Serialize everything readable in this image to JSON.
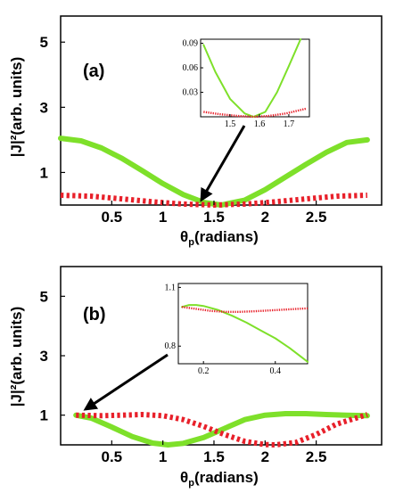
{
  "chart_data": [
    {
      "panel": "(a)",
      "type": "line",
      "xlabel_main": "θ",
      "xlabel_sub": "p",
      "xlabel_rest": "(radians)",
      "ylabel": "|J|²(arb. units)",
      "xlim": [
        0.0,
        3.14
      ],
      "ylim": [
        0,
        5.8
      ],
      "xticks": [
        0.5,
        1,
        1.5,
        2,
        2.5
      ],
      "xtick_labels": [
        "0.5",
        "1",
        "1.5",
        "2",
        "2.5"
      ],
      "yticks": [
        1,
        3,
        5
      ],
      "ytick_labels": [
        "1",
        "3",
        "5"
      ],
      "series": [
        {
          "style": "solid",
          "color": "#7ee02a",
          "x": [
            0.0,
            0.2,
            0.4,
            0.6,
            0.8,
            1.0,
            1.2,
            1.4,
            1.57,
            1.8,
            2.0,
            2.2,
            2.4,
            2.6,
            2.8,
            3.0
          ],
          "y": [
            2.05,
            1.97,
            1.75,
            1.43,
            1.05,
            0.66,
            0.32,
            0.08,
            0.0,
            0.15,
            0.47,
            0.86,
            1.25,
            1.62,
            1.92,
            2.0
          ]
        },
        {
          "style": "dotted",
          "color": "#e8202a",
          "x": [
            0.0,
            0.3,
            0.6,
            0.9,
            1.2,
            1.5,
            1.8,
            2.1,
            2.4,
            2.7,
            3.0
          ],
          "y": [
            0.3,
            0.27,
            0.19,
            0.1,
            0.03,
            0.0,
            0.03,
            0.1,
            0.19,
            0.27,
            0.3
          ]
        }
      ],
      "inset": {
        "xlim": [
          1.4,
          1.77
        ],
        "ylim": [
          0.0,
          0.095
        ],
        "xticks": [
          1.5,
          1.6,
          1.7
        ],
        "xtick_labels": [
          "1.5",
          "1.6",
          "1.7"
        ],
        "yticks": [
          0.03,
          0.06,
          0.09
        ],
        "ytick_labels": [
          "0.03",
          "0.06",
          "0.09"
        ],
        "series": [
          {
            "style": "solid",
            "color": "#7ee02a",
            "x": [
              1.41,
              1.45,
              1.5,
              1.55,
              1.58,
              1.62,
              1.66,
              1.7,
              1.74
            ],
            "y": [
              0.088,
              0.055,
              0.022,
              0.004,
              0.0,
              0.006,
              0.03,
              0.062,
              0.095
            ]
          },
          {
            "style": "dotted",
            "color": "#e8202a",
            "x": [
              1.41,
              1.47,
              1.53,
              1.58,
              1.63,
              1.69,
              1.76
            ],
            "y": [
              0.006,
              0.003,
              0.001,
              0.0,
              0.001,
              0.004,
              0.01
            ]
          }
        ]
      }
    },
    {
      "panel": "(b)",
      "type": "line",
      "xlabel_main": "θ",
      "xlabel_sub": "p",
      "xlabel_rest": "(radians)",
      "ylabel": "|J|²(arb. units)",
      "xlim": [
        0.0,
        3.14
      ],
      "ylim": [
        0,
        6
      ],
      "xticks": [
        0.5,
        1,
        1.5,
        2,
        2.5
      ],
      "xtick_labels": [
        "0.5",
        "1",
        "1.5",
        "2",
        "2.5"
      ],
      "yticks": [
        1,
        3,
        5
      ],
      "ytick_labels": [
        "1",
        "3",
        "5"
      ],
      "series": [
        {
          "style": "solid",
          "color": "#7ee02a",
          "x": [
            0.15,
            0.3,
            0.5,
            0.7,
            0.9,
            1.05,
            1.2,
            1.4,
            1.6,
            1.8,
            2.0,
            2.2,
            2.4,
            2.6,
            2.8,
            3.0
          ],
          "y": [
            1.0,
            0.9,
            0.6,
            0.28,
            0.06,
            0.0,
            0.05,
            0.25,
            0.55,
            0.85,
            1.0,
            1.05,
            1.05,
            1.02,
            1.0,
            0.98
          ]
        },
        {
          "style": "dotted",
          "color": "#e8202a",
          "x": [
            0.15,
            0.4,
            0.6,
            0.8,
            1.0,
            1.2,
            1.4,
            1.6,
            1.8,
            2.0,
            2.1,
            2.3,
            2.5,
            2.7,
            3.0
          ],
          "y": [
            1.0,
            0.98,
            1.0,
            1.02,
            0.98,
            0.85,
            0.62,
            0.35,
            0.12,
            0.01,
            0.0,
            0.08,
            0.35,
            0.7,
            1.02
          ]
        }
      ],
      "inset": {
        "xlim": [
          0.13,
          0.49
        ],
        "ylim": [
          0.71,
          1.12
        ],
        "xticks": [
          0.2,
          0.4
        ],
        "xtick_labels": [
          "0.2",
          "0.4"
        ],
        "yticks": [
          0.8,
          1.1
        ],
        "ytick_labels": [
          "0.8",
          "1.1"
        ],
        "series": [
          {
            "style": "solid",
            "color": "#7ee02a",
            "x": [
              0.14,
              0.16,
              0.18,
              0.2,
              0.24,
              0.28,
              0.32,
              0.36,
              0.4,
              0.44,
              0.49
            ],
            "y": [
              1.0,
              1.01,
              1.01,
              1.005,
              0.985,
              0.955,
              0.92,
              0.88,
              0.84,
              0.79,
              0.72
            ]
          },
          {
            "style": "dotted",
            "color": "#e8202a",
            "x": [
              0.14,
              0.18,
              0.22,
              0.26,
              0.3,
              0.34,
              0.38,
              0.42,
              0.46,
              0.49
            ],
            "y": [
              1.0,
              0.99,
              0.98,
              0.975,
              0.975,
              0.978,
              0.982,
              0.986,
              0.99,
              0.993
            ]
          }
        ]
      }
    }
  ]
}
